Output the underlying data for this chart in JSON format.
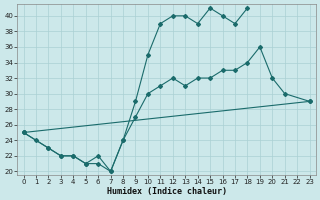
{
  "bg_color": "#cce8ea",
  "grid_color": "#aad0d4",
  "line_color": "#1a6b6b",
  "xlabel": "Humidex (Indice chaleur)",
  "xlim": [
    -0.5,
    23.5
  ],
  "ylim": [
    19.5,
    41.5
  ],
  "ytick_vals": [
    20,
    22,
    24,
    26,
    28,
    30,
    32,
    34,
    36,
    38,
    40
  ],
  "xtick_vals": [
    0,
    1,
    2,
    3,
    4,
    5,
    6,
    7,
    8,
    9,
    10,
    11,
    12,
    13,
    14,
    15,
    16,
    17,
    18,
    19,
    20,
    21,
    22,
    23
  ],
  "line1": {
    "x": [
      0,
      1,
      2,
      3,
      4,
      5,
      6,
      7,
      8,
      9,
      10,
      11,
      12,
      13,
      14,
      15,
      16,
      17,
      18
    ],
    "y": [
      25,
      24,
      23,
      22,
      22,
      21,
      21,
      20,
      24,
      29,
      35,
      39,
      40,
      40,
      39,
      41,
      40,
      39,
      41
    ]
  },
  "line2": {
    "x": [
      0,
      23
    ],
    "y": [
      25,
      29
    ]
  },
  "line3": {
    "x": [
      0,
      2,
      3,
      4,
      5,
      6,
      7,
      8,
      9,
      10,
      11,
      12,
      13,
      14,
      15,
      16,
      17,
      18,
      19,
      20,
      21,
      23
    ],
    "y": [
      25,
      23,
      22,
      22,
      21,
      22,
      20,
      24,
      27,
      30,
      31,
      32,
      31,
      32,
      32,
      33,
      33,
      34,
      36,
      32,
      30,
      29
    ]
  }
}
